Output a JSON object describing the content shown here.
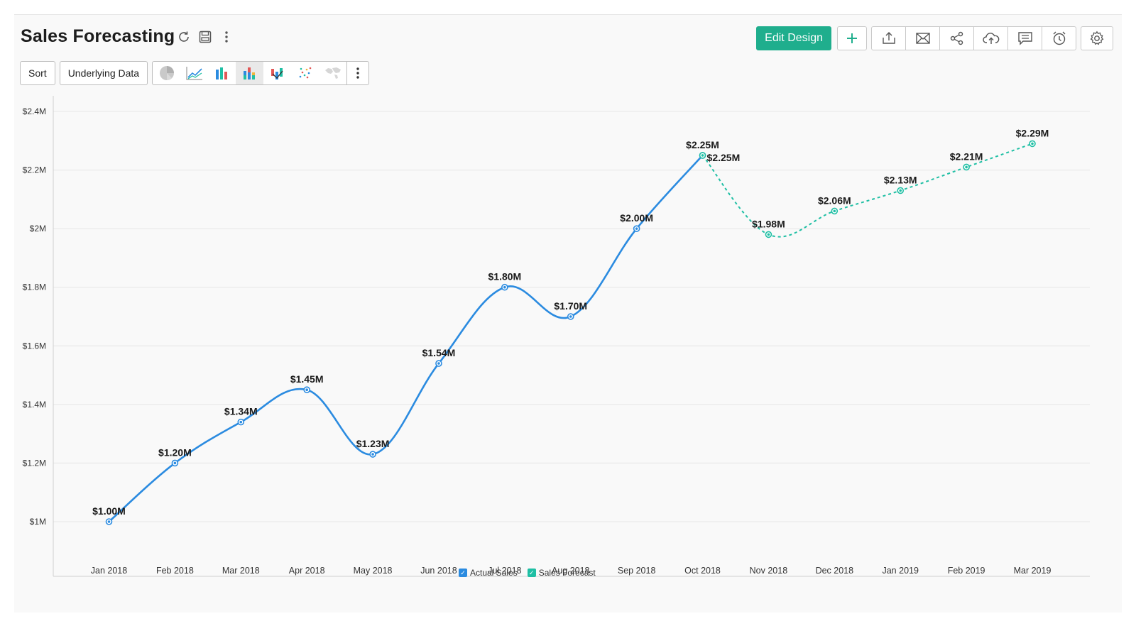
{
  "header": {
    "title": "Sales Forecasting",
    "edit_label": "Edit Design",
    "title_icons": [
      "refresh-icon",
      "save-icon",
      "more-vertical-icon"
    ],
    "actions": [
      "add-icon",
      "export-icon",
      "email-icon",
      "share-icon",
      "publish-icon",
      "comment-icon",
      "schedule-icon"
    ],
    "settings_icon": "gear-icon"
  },
  "toolbar": {
    "sort_label": "Sort",
    "underlying_label": "Underlying Data",
    "chart_types": [
      "pie-chart-icon",
      "line-chart-icon",
      "bar-chart-icon",
      "stacked-bar-chart-icon",
      "waterfall-chart-icon",
      "scatter-chart-icon",
      "map-chart-icon"
    ],
    "active_chart_type": "stacked-bar-chart-icon"
  },
  "colors": {
    "accent": "#1fae8d",
    "actual": "#2b8be0",
    "forecast": "#1fbfa4",
    "grid": "#e6e6e6",
    "axis_text": "#333333"
  },
  "chart_data": {
    "type": "line",
    "categories": [
      "Jan 2018",
      "Feb 2018",
      "Mar 2018",
      "Apr 2018",
      "May 2018",
      "Jun 2018",
      "Jul 2018",
      "Aug 2018",
      "Sep 2018",
      "Oct 2018",
      "Nov 2018",
      "Dec 2018",
      "Jan 2019",
      "Feb 2019",
      "Mar 2019"
    ],
    "ylim": [
      0.9,
      2.4
    ],
    "yticks": [
      1.0,
      1.2,
      1.4,
      1.6,
      1.8,
      2.0,
      2.2,
      2.4
    ],
    "ytick_labels": [
      "$1M",
      "$1.2M",
      "$1.4M",
      "$1.6M",
      "$1.8M",
      "$2M",
      "$2.2M",
      "$2.4M"
    ],
    "grid": true,
    "legend_position": "bottom",
    "series": [
      {
        "name": "Actual Sales",
        "style": "solid",
        "values": [
          1.0,
          1.2,
          1.34,
          1.45,
          1.23,
          1.54,
          1.8,
          1.7,
          2.0,
          2.25,
          null,
          null,
          null,
          null,
          null
        ],
        "labels": [
          "$1.00M",
          "$1.20M",
          "$1.34M",
          "$1.45M",
          "$1.23M",
          "$1.54M",
          "$1.80M",
          "$1.70M",
          "$2.00M",
          "$2.25M",
          "",
          "",
          "",
          "",
          ""
        ]
      },
      {
        "name": "Sales Forecast",
        "style": "dashed",
        "values": [
          null,
          null,
          null,
          null,
          null,
          null,
          null,
          null,
          null,
          2.25,
          1.98,
          2.06,
          2.13,
          2.21,
          2.29
        ],
        "labels": [
          "",
          "",
          "",
          "",
          "",
          "",
          "",
          "",
          "",
          "$2.25M",
          "$1.98M",
          "$2.06M",
          "$2.13M",
          "$2.21M",
          "$2.29M"
        ]
      }
    ]
  }
}
